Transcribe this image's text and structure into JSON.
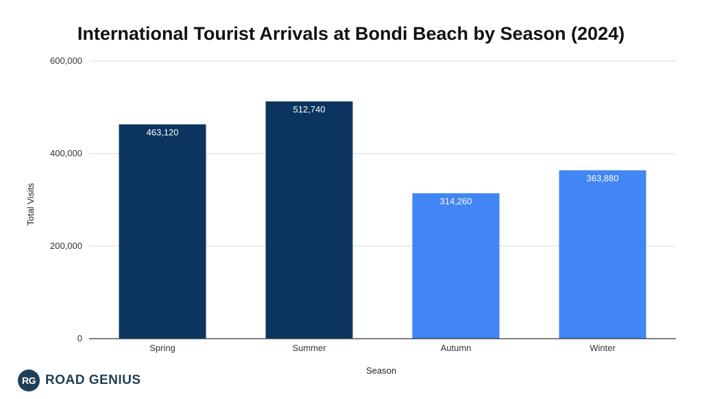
{
  "chart_data": {
    "type": "bar",
    "title": "International Tourist Arrivals at Bondi Beach by Season (2024)",
    "xlabel": "Season",
    "ylabel": "Total Visits",
    "categories": [
      "Spring",
      "Summer",
      "Autumn",
      "Winter"
    ],
    "values": [
      463120,
      512740,
      314260,
      363880
    ],
    "data_labels": [
      "463,120",
      "512,740",
      "314,260",
      "363,880"
    ],
    "bar_colors": [
      "#0b355f",
      "#0b355f",
      "#4285f4",
      "#4285f4"
    ],
    "ylim": [
      0,
      600000
    ],
    "yticks": [
      0,
      200000,
      400000,
      600000
    ],
    "ytick_labels": [
      "0",
      "200,000",
      "400,000",
      "600,000"
    ],
    "grid": true,
    "legend": "none"
  },
  "branding": {
    "logo_badge": "RG",
    "logo_text": "ROAD GENIUS",
    "logo_color": "#1f3f57"
  }
}
